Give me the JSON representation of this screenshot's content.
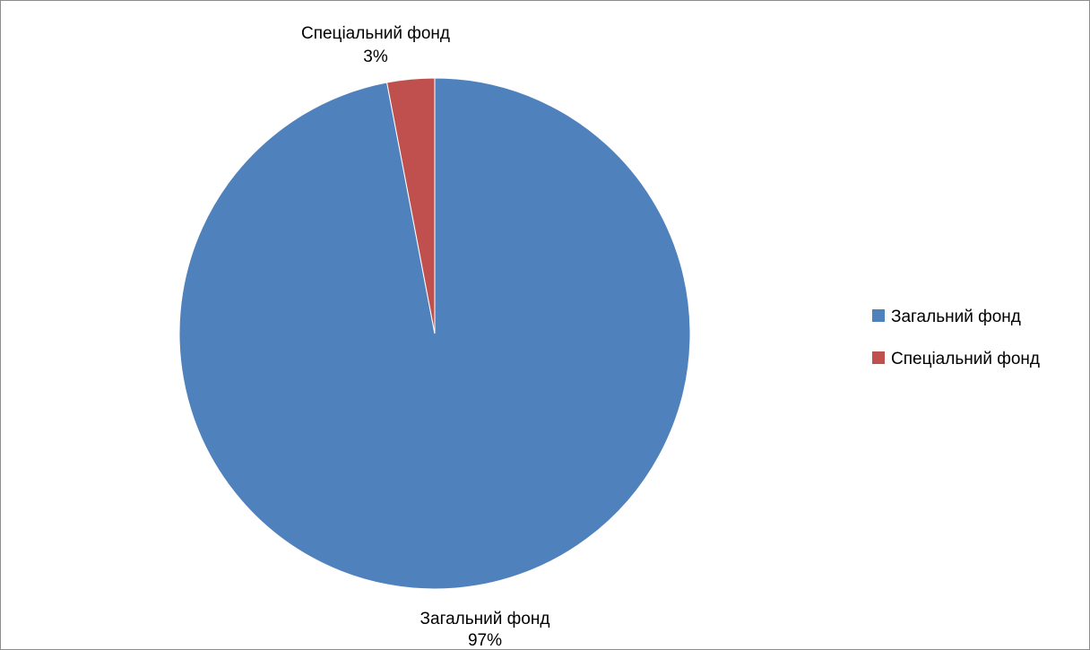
{
  "chart_data": {
    "type": "pie",
    "title": "",
    "categories": [
      "Загальний фонд",
      "Спеціальний фонд"
    ],
    "values": [
      97,
      3
    ],
    "unit": "%",
    "colors": [
      "#4f81bd",
      "#c0504d"
    ],
    "data_labels": [
      {
        "category": "Загальний фонд",
        "percent": "97%"
      },
      {
        "category": "Спеціальний фонд",
        "percent": "3%"
      }
    ],
    "legend": {
      "placement": "right",
      "entries": [
        "Загальний фонд",
        "Спеціальний фонд"
      ]
    },
    "start_angle": "12 o'clock",
    "direction": "clockwise"
  }
}
